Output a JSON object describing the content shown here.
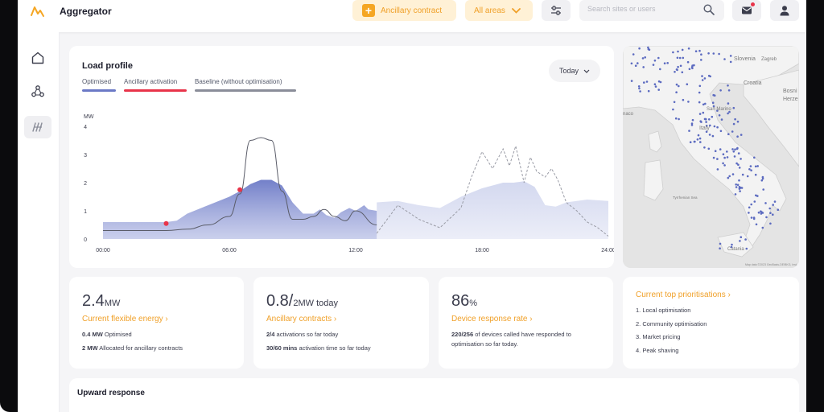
{
  "app": {
    "name": "Aggregator"
  },
  "topbar": {
    "ancillary_button": "Ancillary contract",
    "areas_select": "All areas",
    "search_placeholder": "Search sites or users"
  },
  "load_profile": {
    "title": "Load profile",
    "legend": [
      {
        "label": "Optimised",
        "color": "#6b79c6"
      },
      {
        "label": "Ancillary activation",
        "color": "#e8344a"
      },
      {
        "label": "Baseline (without optimisation)",
        "color": "#8a8d99"
      }
    ],
    "range_button": "Today",
    "chart_data": {
      "type": "area",
      "ylabel": "MW",
      "ylim": [
        0,
        4
      ],
      "y_ticks": [
        "0",
        "1",
        "2",
        "3",
        "4"
      ],
      "x_ticks": [
        "00:00",
        "06:00",
        "12:00",
        "18:00",
        "24:00"
      ],
      "xlim": [
        0,
        24
      ],
      "series": [
        {
          "name": "Optimised",
          "x": [
            0,
            1,
            2,
            3,
            3.5,
            4,
            5,
            6,
            6.5,
            7,
            7.5,
            8,
            8.5,
            9,
            9.5,
            10,
            10.3,
            10.6,
            11,
            11.3,
            11.7,
            12,
            12.4,
            12.6,
            13
          ],
          "y": [
            0.6,
            0.6,
            0.6,
            0.6,
            0.65,
            0.9,
            1.2,
            1.5,
            1.7,
            1.95,
            2.1,
            2.1,
            1.9,
            1.3,
            0.9,
            0.9,
            1.05,
            0.85,
            0.75,
            0.95,
            1.1,
            1.0,
            1.2,
            1.05,
            1.0
          ]
        },
        {
          "name": "Optimised (forecast)",
          "x": [
            13,
            14,
            15,
            16,
            17,
            18,
            19,
            19.5,
            20,
            20.5,
            21,
            21.5,
            22,
            23,
            24
          ],
          "y": [
            1.3,
            1.35,
            1.2,
            1.1,
            1.5,
            1.8,
            2.0,
            2.0,
            2.05,
            1.85,
            1.2,
            1.15,
            1.3,
            1.4,
            1.35
          ]
        },
        {
          "name": "Baseline (without optimisation)",
          "x": [
            0,
            1,
            2,
            3,
            4,
            5,
            6,
            6.5,
            7,
            7.5,
            8,
            8.5,
            9,
            9.5,
            10,
            10.5,
            11,
            11.5,
            12,
            13
          ],
          "y": [
            0.3,
            0.3,
            0.3,
            0.3,
            0.35,
            0.5,
            0.8,
            1.6,
            3.5,
            3.6,
            3.5,
            1.7,
            0.7,
            0.7,
            0.8,
            1.05,
            0.8,
            0.65,
            1.0,
            0.5
          ]
        },
        {
          "name": "Baseline (forecast)",
          "x": [
            13,
            14,
            15,
            16,
            17,
            17.5,
            18,
            18.5,
            19,
            19.3,
            19.6,
            20,
            20.3,
            20.6,
            21,
            21.3,
            21.6,
            22,
            22.5,
            23,
            23.5,
            24
          ],
          "y": [
            0.2,
            1.2,
            0.7,
            0.4,
            1.1,
            2.2,
            3.1,
            2.5,
            3.2,
            2.6,
            3.3,
            2.0,
            2.9,
            2.4,
            2.2,
            2.5,
            2.1,
            1.3,
            1.0,
            0.6,
            0.4,
            0.1
          ]
        },
        {
          "name": "Ancillary activation",
          "x": [
            3,
            6.5
          ],
          "y": [
            0.55,
            1.75
          ]
        }
      ]
    }
  },
  "stats": [
    {
      "value": "2.4",
      "unit": "MW",
      "link": "Current flexible energy ›",
      "lines": [
        {
          "bold": "0.4 MW",
          "text": " Optimised"
        },
        {
          "bold": "2 MW",
          "text": " Allocated for ancillary contracts"
        }
      ]
    },
    {
      "value": "0.8/",
      "unit": "2MW today",
      "link": "Ancillary contracts ›",
      "lines": [
        {
          "bold": "2/4",
          "text": " activations so far today"
        },
        {
          "bold": "30/60 mins",
          "text": " activation time so far today"
        }
      ]
    },
    {
      "value": "86",
      "unit": "%",
      "link": "Device response rate ›",
      "lines": [
        {
          "bold": "220/256",
          "text": " of devices called have responded to"
        },
        {
          "bold": "",
          "text": "optimisation so far today."
        }
      ]
    }
  ],
  "prioritisations": {
    "title": "Current top prioritisations ›",
    "items": [
      "1. Local optimisation",
      "2. Community optimisation",
      "3. Market pricing",
      "4. Peak shaving"
    ]
  },
  "map": {
    "labels": [
      "Slovenia",
      "Zagreb",
      "Croatia",
      "Bosni",
      "Herze",
      "San Marino",
      "naco",
      "Italy",
      "Tyrrhenian Sea",
      "Catania"
    ],
    "attribution": "Map data ©2023 GeoBasis-DE/BKG, Inst."
  },
  "upward": {
    "title": "Upward response"
  },
  "colors": {
    "accent": "#f5a623",
    "accent_bg": "#fff1d6",
    "optimised": "#6b79c6",
    "forecast": "#dde1f2",
    "activation": "#e8344a",
    "baseline": "#6b6d78"
  }
}
